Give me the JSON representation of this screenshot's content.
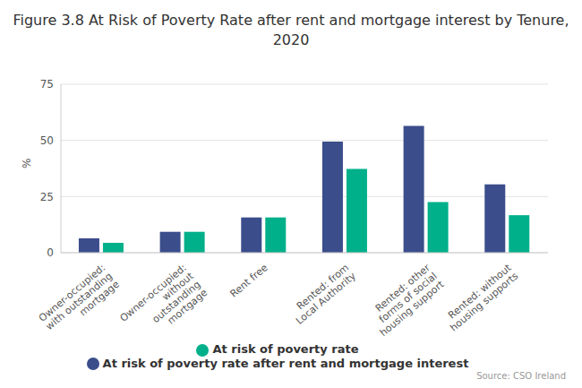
{
  "chart_data": {
    "type": "bar",
    "title": "Figure 3.8 At Risk of Poverty Rate after rent and mortgage interest by Tenure, 2020",
    "y_label": "%",
    "source": "Source: CSO Ireland",
    "categories": [
      "Owner-occupied: with outstanding mortgage",
      "Owner-occupied: without outstanding mortgage",
      "Rent free",
      "Rented: from Local Authority",
      "Rented: other forms of social housing support",
      "Rented: without housing supports"
    ],
    "series": [
      {
        "name": "At risk of poverty rate after rent and mortgage interest",
        "color": "#3b4d8b",
        "values": [
          6.4,
          9.3,
          15.7,
          49.5,
          56.4,
          30.4
        ]
      },
      {
        "name": "At risk of poverty rate",
        "color": "#00b08a",
        "values": [
          4.4,
          9.3,
          15.7,
          37.3,
          22.5,
          16.7
        ]
      }
    ],
    "ylim": [
      0,
      75
    ],
    "yticks": [
      0,
      25,
      50,
      75
    ],
    "grid": true,
    "legend": "bottom"
  }
}
